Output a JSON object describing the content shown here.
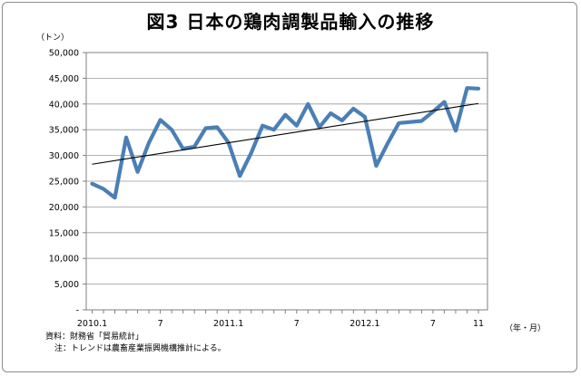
{
  "chart_data": {
    "type": "line",
    "title": "図3  日本の鶏肉調製品輸入の推移",
    "y_unit": "（トン）",
    "x_unit": "（年・月）",
    "ylim": [
      0,
      50000
    ],
    "y_ticks": [
      "50,000",
      "45,000",
      "40,000",
      "35,000",
      "30,000",
      "25,000",
      "20,000",
      "15,000",
      "10,000",
      "5,000",
      "-"
    ],
    "x_ticks": [
      {
        "index": 0,
        "label": "2010.1"
      },
      {
        "index": 6,
        "label": "7"
      },
      {
        "index": 12,
        "label": "2011.1"
      },
      {
        "index": 18,
        "label": "7"
      },
      {
        "index": 24,
        "label": "2012.1"
      },
      {
        "index": 30,
        "label": "7"
      },
      {
        "index": 34,
        "label": "11"
      }
    ],
    "grid": true,
    "series": [
      {
        "values": [
          24500,
          23500,
          21800,
          33500,
          26800,
          32500,
          36900,
          35000,
          31300,
          31700,
          35300,
          35500,
          32500,
          26000,
          30500,
          35800,
          35000,
          37900,
          35800,
          40000,
          35500,
          38200,
          36800,
          39100,
          37500,
          28000,
          32300,
          36300,
          36500,
          36700,
          38500,
          40400,
          34800,
          43100,
          43000
        ],
        "color": "#4a7fb6"
      },
      {
        "type": "trendline",
        "values": [
          28300,
          40100
        ],
        "color": "#000000"
      }
    ]
  },
  "source": "資料：財務省「貿易統計」",
  "note": "注：トレンドは農畜産業振興機構推計による。"
}
